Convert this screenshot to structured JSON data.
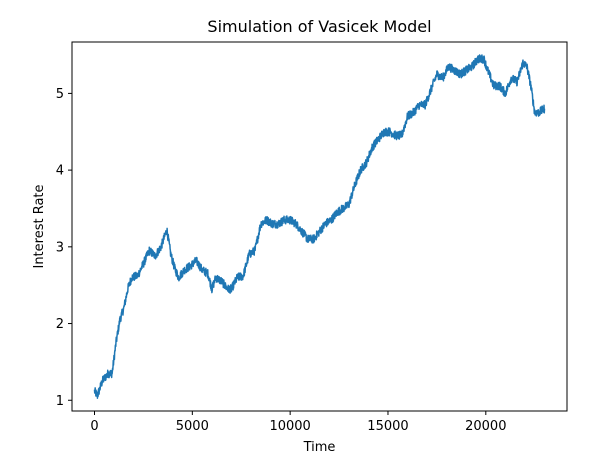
{
  "chart_data": {
    "type": "line",
    "title": "Simulation of Vasicek Model",
    "xlabel": "Time",
    "ylabel": "Interest Rate",
    "xlim": [
      -1150,
      24150
    ],
    "ylim": [
      0.86,
      5.67
    ],
    "xticks": [
      0,
      5000,
      10000,
      15000,
      20000
    ],
    "xtick_labels": [
      "0",
      "5000",
      "10000",
      "15000",
      "20000"
    ],
    "yticks": [
      1,
      2,
      3,
      4,
      5
    ],
    "ytick_labels": [
      "1",
      "2",
      "3",
      "4",
      "5"
    ],
    "grid": false,
    "color": "#1f77b4",
    "noise": 0.055,
    "series": [
      {
        "x": [
          0,
          150,
          400,
          700,
          900,
          1100,
          1300,
          1500,
          1700,
          1900,
          2200,
          2500,
          2800,
          3100,
          3400,
          3700,
          3900,
          4100,
          4300,
          4600,
          4900,
          5200,
          5500,
          5800,
          6000,
          6200,
          6500,
          6800,
          7000,
          7300,
          7600,
          7900,
          8200,
          8500,
          8800,
          9100,
          9400,
          9700,
          10000,
          10300,
          10600,
          10900,
          11200,
          11500,
          11800,
          12100,
          12400,
          12700,
          13000,
          13300,
          13600,
          13900,
          14200,
          14500,
          14800,
          15100,
          15400,
          15700,
          16000,
          16300,
          16600,
          16900,
          17200,
          17500,
          17800,
          18100,
          18400,
          18700,
          19000,
          19300,
          19600,
          19900,
          20100,
          20400,
          20700,
          21000,
          21300,
          21600,
          21900,
          22100,
          22300,
          22500,
          22700,
          23000
        ],
        "y": [
          1.12,
          1.06,
          1.25,
          1.35,
          1.35,
          1.75,
          2.05,
          2.2,
          2.45,
          2.6,
          2.62,
          2.78,
          2.95,
          2.88,
          3.0,
          3.22,
          2.9,
          2.72,
          2.6,
          2.7,
          2.75,
          2.82,
          2.7,
          2.65,
          2.45,
          2.6,
          2.55,
          2.45,
          2.45,
          2.6,
          2.62,
          2.9,
          2.95,
          3.3,
          3.35,
          3.3,
          3.3,
          3.35,
          3.35,
          3.3,
          3.2,
          3.1,
          3.1,
          3.2,
          3.3,
          3.35,
          3.45,
          3.5,
          3.55,
          3.8,
          4.0,
          4.1,
          4.3,
          4.4,
          4.5,
          4.5,
          4.45,
          4.45,
          4.7,
          4.75,
          4.85,
          4.85,
          5.05,
          5.25,
          5.2,
          5.35,
          5.3,
          5.25,
          5.3,
          5.35,
          5.45,
          5.45,
          5.3,
          5.1,
          5.1,
          5.0,
          5.2,
          5.15,
          5.4,
          5.35,
          5.1,
          4.75,
          4.75,
          4.8
        ]
      }
    ]
  }
}
